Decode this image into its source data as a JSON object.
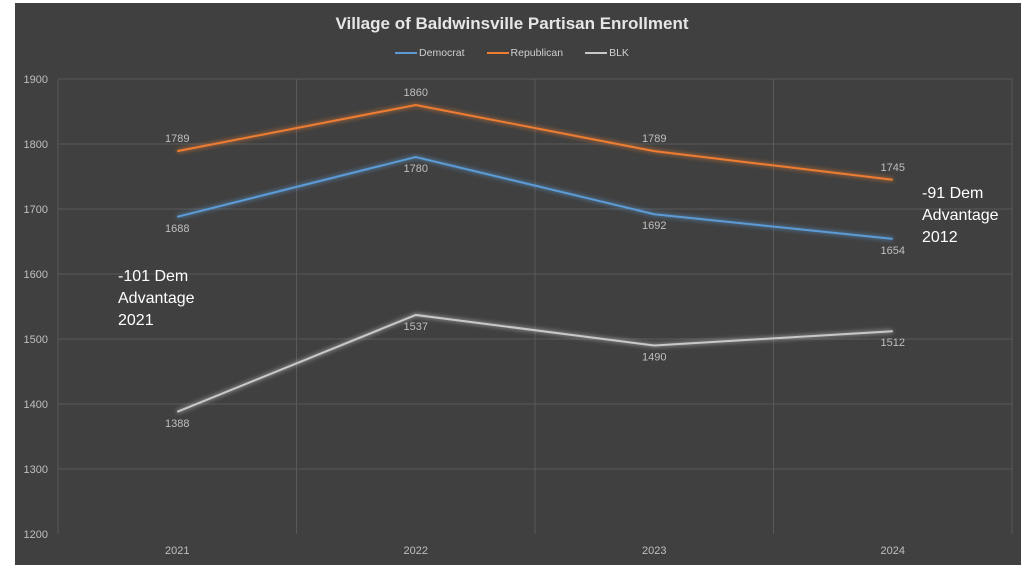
{
  "chart_data": {
    "type": "line",
    "title": "Village of Baldwinsville Partisan Enrollment",
    "categories": [
      "2021",
      "2022",
      "2023",
      "2024"
    ],
    "ylim": [
      1200,
      1900
    ],
    "yticks": [
      1200,
      1300,
      1400,
      1500,
      1600,
      1700,
      1800,
      1900
    ],
    "grid": true,
    "legend_position": "top",
    "series": [
      {
        "name": "Democrat",
        "color": "#5b9bd5",
        "values": [
          1688,
          1780,
          1692,
          1654
        ],
        "label_pos": "below"
      },
      {
        "name": "Republican",
        "color": "#ed7d31",
        "values": [
          1789,
          1860,
          1789,
          1745
        ],
        "label_pos": "above"
      },
      {
        "name": "BLK",
        "color": "#c8c8c8",
        "values": [
          1388,
          1537,
          1490,
          1512
        ],
        "label_pos": "below"
      }
    ],
    "annotations": [
      {
        "lines": [
          "-101 Dem",
          "Advantage",
          "2021"
        ]
      },
      {
        "lines": [
          "-91 Dem",
          "Advantage",
          "2012"
        ]
      }
    ]
  }
}
